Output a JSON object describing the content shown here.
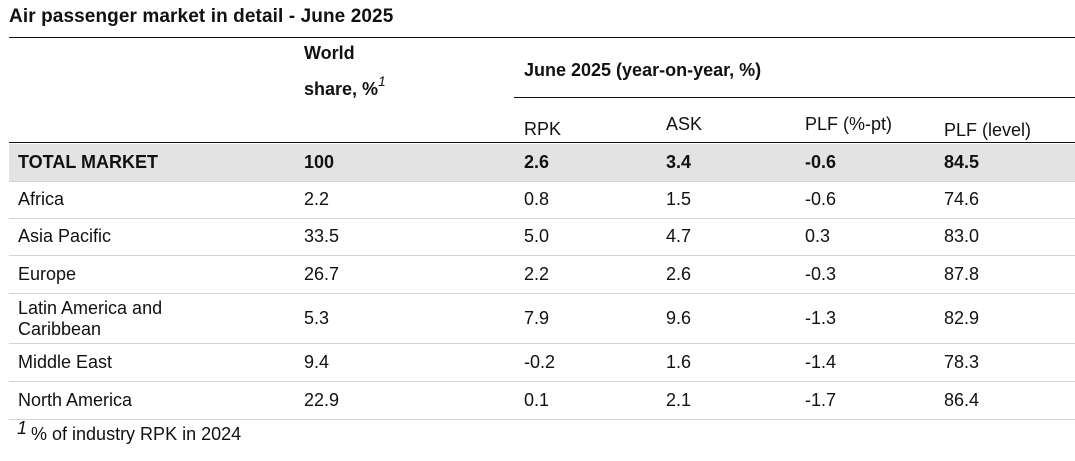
{
  "title": "Air passenger market in detail - June 2025",
  "header": {
    "world_share_line1": "World",
    "world_share_line2": "share, %",
    "footnote_mark": "1",
    "group_label": "June 2025 (year-on-year, %)",
    "columns": [
      "RPK",
      "ASK",
      "PLF (%-pt)",
      "PLF (level)"
    ]
  },
  "rows": [
    {
      "region": "TOTAL MARKET",
      "share": "100",
      "rpk": "2.6",
      "ask": "3.4",
      "plf_pt": "-0.6",
      "plf_level": "84.5"
    },
    {
      "region": "Africa",
      "share": "2.2",
      "rpk": "0.8",
      "ask": "1.5",
      "plf_pt": "-0.6",
      "plf_level": "74.6"
    },
    {
      "region": "Asia Pacific",
      "share": "33.5",
      "rpk": "5.0",
      "ask": "4.7",
      "plf_pt": "0.3",
      "plf_level": "83.0"
    },
    {
      "region": "Europe",
      "share": "26.7",
      "rpk": "2.2",
      "ask": "2.6",
      "plf_pt": "-0.3",
      "plf_level": "87.8"
    },
    {
      "region": "Latin America and\nCaribbean",
      "share": "5.3",
      "rpk": "7.9",
      "ask": "9.6",
      "plf_pt": "-1.3",
      "plf_level": "82.9"
    },
    {
      "region": "Middle East",
      "share": "9.4",
      "rpk": "-0.2",
      "ask": "1.6",
      "plf_pt": "-1.4",
      "plf_level": "78.3"
    },
    {
      "region": "North America",
      "share": "22.9",
      "rpk": "0.1",
      "ask": "2.1",
      "plf_pt": "-1.7",
      "plf_level": "86.4"
    }
  ],
  "footnote": {
    "mark": "1",
    "text": "% of industry RPK in 2024"
  }
}
